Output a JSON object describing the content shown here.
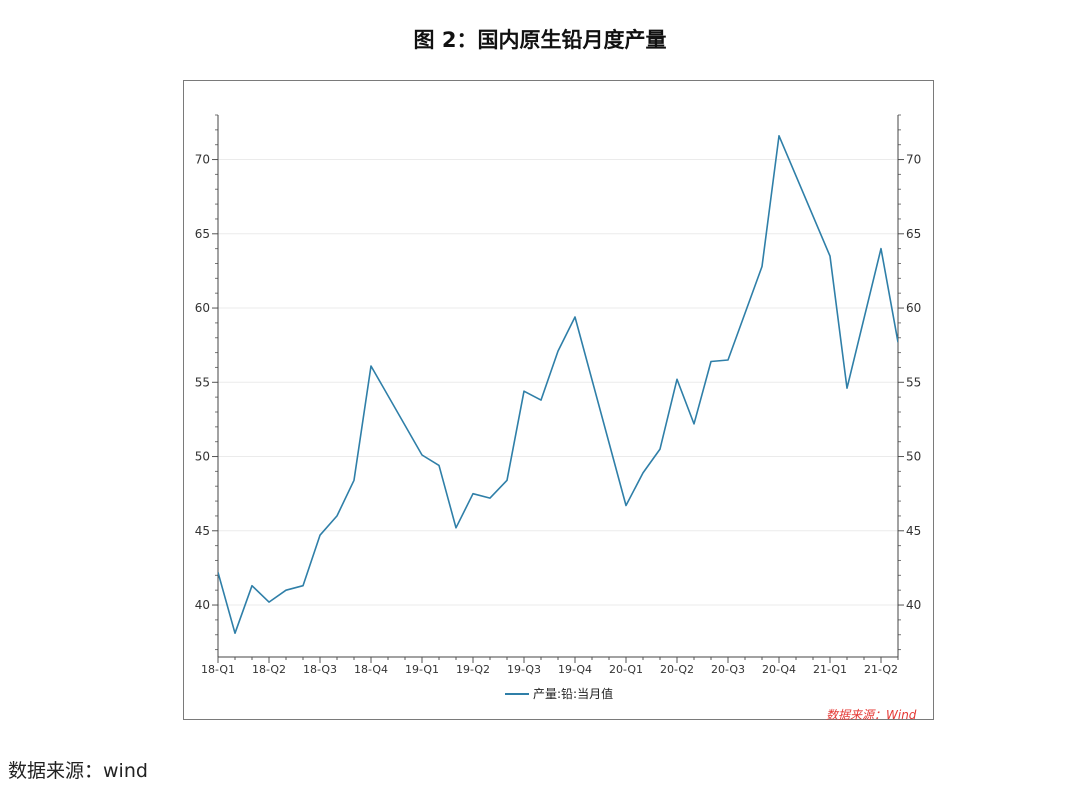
{
  "title": "图 2：国内原生铅月度产量",
  "source_text": "数据来源：wind",
  "watermark": "数据来源：Wind",
  "chart_data": {
    "type": "line",
    "title": "图 2：国内原生铅月度产量",
    "xlabel": "",
    "ylabel": "",
    "ylim": [
      36.5,
      73
    ],
    "yticks": [
      40,
      45,
      50,
      55,
      60,
      65,
      70
    ],
    "x_tick_labels": [
      "18-Q1",
      "18-Q2",
      "18-Q3",
      "18-Q4",
      "19-Q1",
      "19-Q2",
      "19-Q3",
      "19-Q4",
      "20-Q1",
      "20-Q2",
      "20-Q3",
      "20-Q4",
      "21-Q1",
      "21-Q2"
    ],
    "grid": true,
    "legend_position": "bottom",
    "series": [
      {
        "name": "产量:铅:当月值",
        "color": "#2f7fa8",
        "x": [
          "2018-01",
          "2018-02",
          "2018-03",
          "2018-04",
          "2018-05",
          "2018-06",
          "2018-07",
          "2018-08",
          "2018-09",
          "2018-10",
          "2018-11",
          "2018-12",
          "2019-01",
          "2019-02",
          "2019-03",
          "2019-04",
          "2019-05",
          "2019-06",
          "2019-07",
          "2019-08",
          "2019-09",
          "2019-10",
          "2019-11",
          "2019-12",
          "2020-01",
          "2020-02",
          "2020-03",
          "2020-04",
          "2020-05",
          "2020-06",
          "2020-07",
          "2020-08",
          "2020-09",
          "2020-10",
          "2020-11",
          "2020-12",
          "2021-01",
          "2021-02",
          "2021-03",
          "2021-04",
          "2021-05"
        ],
        "values": [
          42.2,
          38.1,
          41.3,
          40.2,
          41.0,
          41.3,
          44.7,
          46.0,
          48.4,
          56.1,
          null,
          null,
          50.1,
          49.4,
          45.2,
          47.5,
          47.2,
          48.4,
          54.4,
          53.8,
          57.1,
          59.4,
          null,
          null,
          46.7,
          48.9,
          50.5,
          55.2,
          52.2,
          56.4,
          56.5,
          null,
          62.8,
          71.6,
          null,
          null,
          63.5,
          54.6,
          null,
          64.0,
          57.7
        ]
      }
    ]
  }
}
